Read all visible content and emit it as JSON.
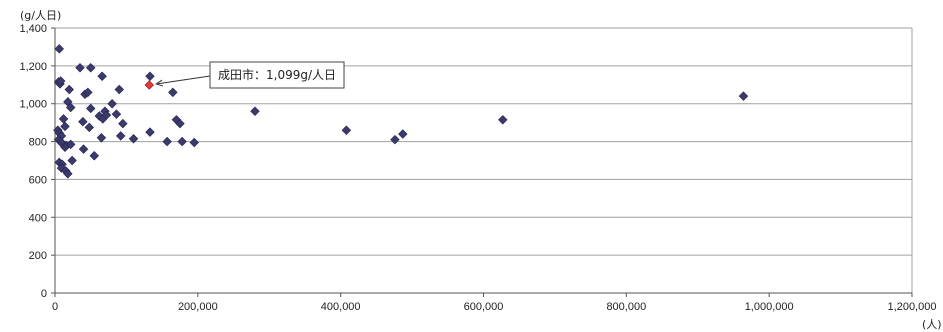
{
  "chart_data": {
    "type": "scatter",
    "ylabel": "(g/人日)",
    "xlabel": "(人)",
    "xlim": [
      0,
      1200000
    ],
    "ylim": [
      0,
      1400
    ],
    "x_ticks": [
      0,
      200000,
      400000,
      600000,
      800000,
      1000000,
      1200000
    ],
    "x_tick_labels": [
      "0",
      "200,000",
      "400,000",
      "600,000",
      "800,000",
      "1,000,000",
      "1,200,000"
    ],
    "y_ticks": [
      0,
      200,
      400,
      600,
      800,
      1000,
      1200,
      1400
    ],
    "y_tick_labels": [
      "0",
      "200",
      "400",
      "600",
      "800",
      "1,000",
      "1,200",
      "1,400"
    ],
    "grid": "horizontal",
    "colors": {
      "points": "#3b3a6e",
      "highlight": "#e53935",
      "grid": "#a0a0a0"
    },
    "series": [
      {
        "points": [
          [
            6000,
            1290
          ],
          [
            5000,
            1115
          ],
          [
            7000,
            1105
          ],
          [
            8000,
            1120
          ],
          [
            12000,
            920
          ],
          [
            14000,
            880
          ],
          [
            4000,
            860
          ],
          [
            6000,
            845
          ],
          [
            9000,
            830
          ],
          [
            5000,
            810
          ],
          [
            8000,
            800
          ],
          [
            10000,
            790
          ],
          [
            16000,
            780
          ],
          [
            14000,
            770
          ],
          [
            22000,
            785
          ],
          [
            6000,
            690
          ],
          [
            10000,
            680
          ],
          [
            9000,
            660
          ],
          [
            15000,
            645
          ],
          [
            18000,
            630
          ],
          [
            24000,
            700
          ],
          [
            18000,
            1010
          ],
          [
            20000,
            1075
          ],
          [
            22000,
            980
          ],
          [
            35000,
            1190
          ],
          [
            42000,
            1050
          ],
          [
            46000,
            1060
          ],
          [
            50000,
            1190
          ],
          [
            50000,
            975
          ],
          [
            39000,
            905
          ],
          [
            48000,
            875
          ],
          [
            55000,
            725
          ],
          [
            40000,
            760
          ],
          [
            66000,
            1145
          ],
          [
            62000,
            935
          ],
          [
            67000,
            920
          ],
          [
            70000,
            960
          ],
          [
            72000,
            940
          ],
          [
            80000,
            1000
          ],
          [
            86000,
            945
          ],
          [
            90000,
            1075
          ],
          [
            95000,
            895
          ],
          [
            65000,
            820
          ],
          [
            92000,
            830
          ],
          [
            110000,
            815
          ],
          [
            133000,
            1145
          ],
          [
            133000,
            850
          ],
          [
            165000,
            1060
          ],
          [
            170000,
            915
          ],
          [
            175000,
            895
          ],
          [
            178000,
            800
          ],
          [
            157000,
            800
          ],
          [
            195000,
            795
          ],
          [
            280000,
            960
          ],
          [
            408000,
            860
          ],
          [
            476000,
            810
          ],
          [
            487000,
            840
          ],
          [
            627000,
            915
          ],
          [
            964000,
            1040
          ]
        ]
      }
    ],
    "highlight": {
      "x": 132000,
      "y": 1099,
      "label": "成田市：1,099g/人日"
    }
  }
}
